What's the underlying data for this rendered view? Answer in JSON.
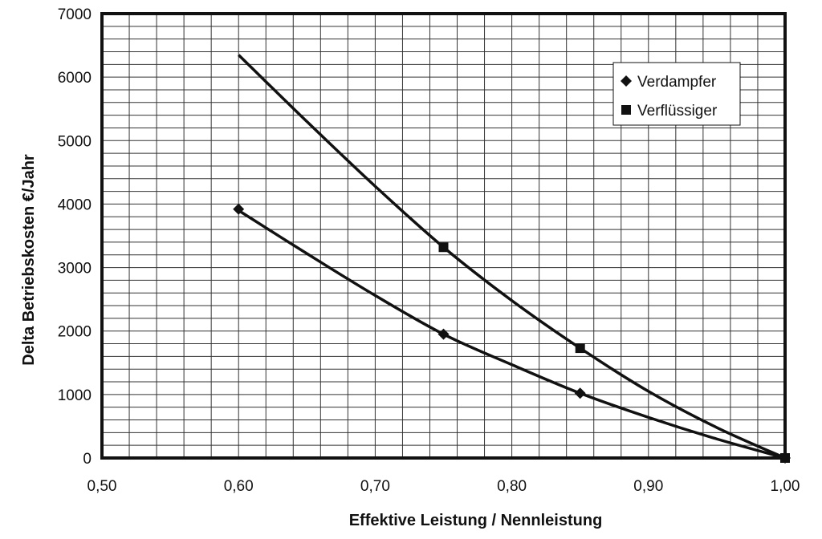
{
  "chart_data": {
    "type": "line",
    "xlabel": "Effektive Leistung / Nennleistung",
    "ylabel": "Delta Betriebskosten €/Jahr",
    "xlim": [
      0.5,
      1.0
    ],
    "ylim": [
      0,
      7000
    ],
    "x_ticks": [
      "0,50",
      "0,60",
      "0,70",
      "0,80",
      "0,90",
      "1,00"
    ],
    "y_ticks": [
      "0",
      "1000",
      "2000",
      "3000",
      "4000",
      "5000",
      "6000",
      "7000"
    ],
    "grid": true,
    "legend_position": "top-right",
    "series": [
      {
        "name": "Verdampfer",
        "marker": "diamond",
        "curve_x": [
          0.6,
          0.65,
          0.7,
          0.75,
          0.8,
          0.85,
          0.9,
          0.95,
          1.0
        ],
        "curve_y": [
          3900,
          3220,
          2560,
          1950,
          1470,
          1020,
          640,
          300,
          0
        ],
        "points": [
          {
            "x": 0.6,
            "y": 3920
          },
          {
            "x": 0.75,
            "y": 1950
          },
          {
            "x": 0.85,
            "y": 1020
          },
          {
            "x": 1.0,
            "y": 0
          }
        ]
      },
      {
        "name": "Verflüssiger",
        "marker": "square",
        "curve_x": [
          0.6,
          0.65,
          0.7,
          0.75,
          0.8,
          0.85,
          0.9,
          0.95,
          1.0
        ],
        "curve_y": [
          6350,
          5300,
          4280,
          3320,
          2480,
          1730,
          1050,
          480,
          0
        ],
        "points": [
          {
            "x": 0.75,
            "y": 3320
          },
          {
            "x": 0.85,
            "y": 1730
          },
          {
            "x": 1.0,
            "y": 0
          }
        ]
      }
    ]
  }
}
